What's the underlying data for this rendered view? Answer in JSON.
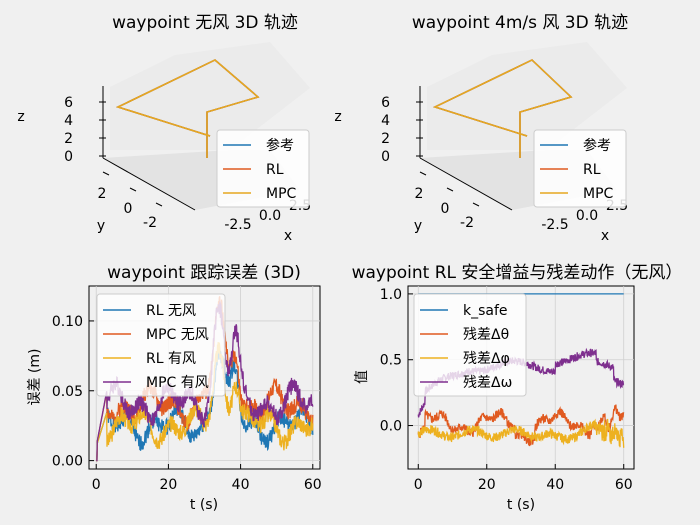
{
  "colors": {
    "ref": "#1f77b4",
    "rl": "#e05a20",
    "mpc": "#e6a820",
    "rl_wind": "#edb120",
    "mpc_wind": "#7e2f8e",
    "k_safe": "#1f77b4",
    "d_theta": "#e05a20",
    "d_phi": "#edb120",
    "d_omega": "#7e2f8e"
  },
  "chart_data": [
    {
      "type": "line3d",
      "title": "waypoint 无风 3D 轨迹",
      "xlabel": "x",
      "ylabel": "y",
      "zlabel": "z",
      "x_ticks": [
        "-2.5",
        "0.0",
        "2.5"
      ],
      "y_ticks": [
        "2",
        "0",
        "-2"
      ],
      "z_ticks": [
        "6",
        "4",
        "2",
        "0"
      ],
      "legend": [
        "参考",
        "RL",
        "MPC"
      ],
      "legend_position": "lower-right"
    },
    {
      "type": "line3d",
      "title": "waypoint 4m/s 风 3D 轨迹",
      "xlabel": "x",
      "ylabel": "y",
      "zlabel": "z",
      "x_ticks": [
        "-2.5",
        "0.0",
        "2.5"
      ],
      "y_ticks": [
        "2",
        "0",
        "-2"
      ],
      "z_ticks": [
        "6",
        "4",
        "2",
        "0"
      ],
      "legend": [
        "参考",
        "RL",
        "MPC"
      ],
      "legend_position": "lower-right"
    },
    {
      "type": "line",
      "title": "waypoint 跟踪误差 (3D)",
      "xlabel": "t (s)",
      "ylabel": "误差 (m)",
      "xlim": [
        -2,
        62
      ],
      "ylim": [
        -0.006,
        0.125
      ],
      "x_ticks": [
        0,
        20,
        40,
        60
      ],
      "y_ticks": [
        0.0,
        0.05,
        0.1
      ],
      "y_tick_labels": [
        "0.00",
        "0.05",
        "0.10"
      ],
      "grid": true,
      "legend_position": "top-left",
      "series": [
        {
          "name": "RL 无风",
          "color": "#1f77b4",
          "base": 0.025,
          "amp": 0.028,
          "noise": 0.006,
          "seed": 1
        },
        {
          "name": "MPC 无风",
          "color": "#e05a20",
          "base": 0.04,
          "amp": 0.03,
          "noise": 0.006,
          "seed": 2
        },
        {
          "name": "RL 有风",
          "color": "#edb120",
          "base": 0.025,
          "amp": 0.027,
          "noise": 0.006,
          "seed": 3
        },
        {
          "name": "MPC 有风",
          "color": "#7e2f8e",
          "base": 0.041,
          "amp": 0.031,
          "noise": 0.006,
          "seed": 4
        }
      ]
    },
    {
      "type": "line",
      "title": "waypoint RL 安全增益与残差动作（无风）",
      "xlabel": "t (s)",
      "ylabel": "值",
      "xlim": [
        -3,
        63
      ],
      "ylim": [
        -0.33,
        1.06
      ],
      "x_ticks": [
        0,
        20,
        40,
        60
      ],
      "y_ticks": [
        0.0,
        0.5,
        1.0
      ],
      "y_tick_labels": [
        "0.0",
        "0.5",
        "1.0"
      ],
      "grid": true,
      "legend_position": "top-left",
      "series": [
        {
          "name": "k_safe",
          "color": "#1f77b4",
          "kind": "const",
          "value": 1.0
        },
        {
          "name": "残差Δθ",
          "color": "#e05a20",
          "kind": "theta",
          "seed": 5
        },
        {
          "name": "残差Δφ",
          "color": "#edb120",
          "kind": "phi",
          "seed": 6
        },
        {
          "name": "残差Δω",
          "color": "#7e2f8e",
          "kind": "omega",
          "seed": 7
        }
      ]
    }
  ]
}
